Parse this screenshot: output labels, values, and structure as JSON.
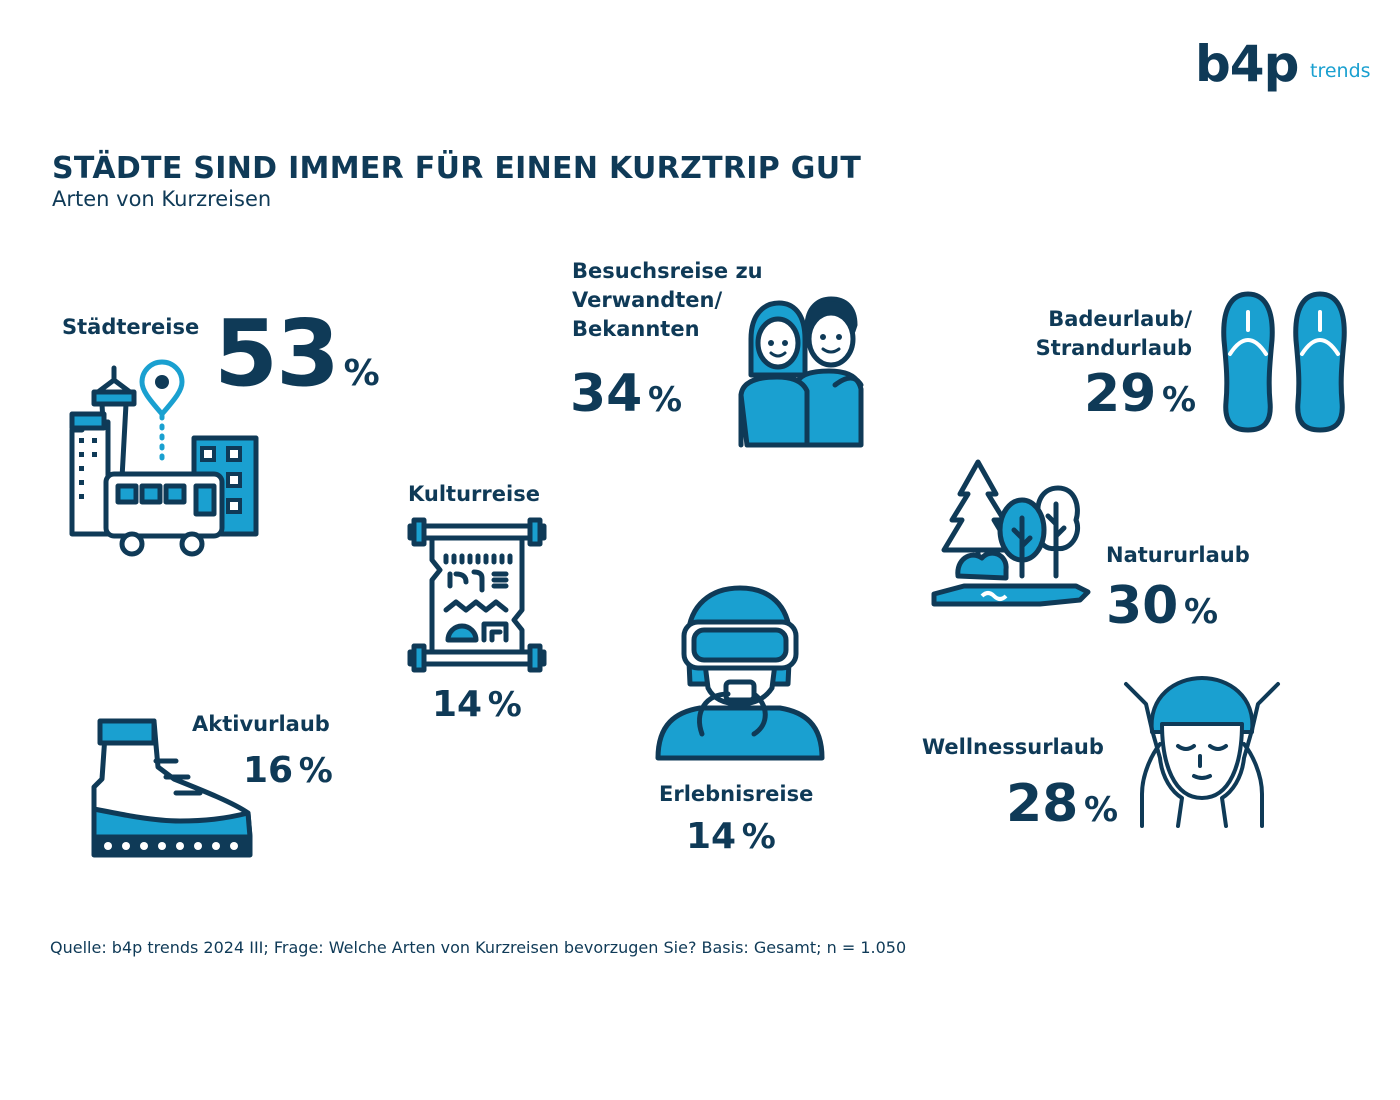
{
  "logo": {
    "brand": "b4p",
    "sub": "trends"
  },
  "title": "STÄDTE SIND IMMER FÜR EINEN KURZTRIP GUT",
  "subtitle": "Arten von Kurzreisen",
  "items": [
    {
      "label": "Städtereise",
      "value": "53",
      "unit": "%",
      "icon": "city-icon"
    },
    {
      "label": "Besuchsreise zu Verwandten/ Bekannten",
      "value": "34",
      "unit": "%",
      "icon": "couple-icon"
    },
    {
      "label": "Badeurlaub/ Strandurlaub",
      "value": "29",
      "unit": "%",
      "icon": "flip-flops-icon"
    },
    {
      "label": "Kulturreise",
      "value": "14",
      "unit": "%",
      "icon": "papyrus-scroll-icon"
    },
    {
      "label": "Natururlaub",
      "value": "30",
      "unit": "%",
      "icon": "trees-icon"
    },
    {
      "label": "Aktivurlaub",
      "value": "16",
      "unit": "%",
      "icon": "hiking-boot-icon"
    },
    {
      "label": "Erlebnisreise",
      "value": "14",
      "unit": "%",
      "icon": "diver-icon"
    },
    {
      "label": "Wellnessurlaub",
      "value": "28",
      "unit": "%",
      "icon": "face-massage-icon"
    }
  ],
  "labels": {
    "staedte": "Städtereise",
    "besuch_1": "Besuchsreise zu",
    "besuch_2": "Verwandten/",
    "besuch_3": "Bekannten",
    "bade_1": "Badeurlaub/",
    "bade_2": "Strandurlaub",
    "kultur": "Kulturreise",
    "natur": "Natururlaub",
    "aktiv": "Aktivurlaub",
    "erlebnis": "Erlebnisreise",
    "wellness": "Wellnessurlaub"
  },
  "percent_sign": "%",
  "source": "Quelle: b4p trends 2024 III; Frage: Welche Arten von Kurzreisen bevorzugen Sie? Basis: Gesamt; n = 1.050",
  "colors": {
    "dark": "#0f3a57",
    "accent": "#1aa0d0",
    "white": "#ffffff"
  },
  "chart_data": {
    "type": "table",
    "title": "STÄDTE SIND IMMER FÜR EINEN KURZTRIP GUT",
    "subtitle": "Arten von Kurzreisen",
    "unit": "%",
    "categories": [
      "Städtereise",
      "Besuchsreise zu Verwandten/ Bekannten",
      "Badeurlaub/ Strandurlaub",
      "Kulturreise",
      "Natururlaub",
      "Aktivurlaub",
      "Erlebnisreise",
      "Wellnessurlaub"
    ],
    "values": [
      53,
      34,
      29,
      14,
      30,
      16,
      14,
      28
    ]
  }
}
